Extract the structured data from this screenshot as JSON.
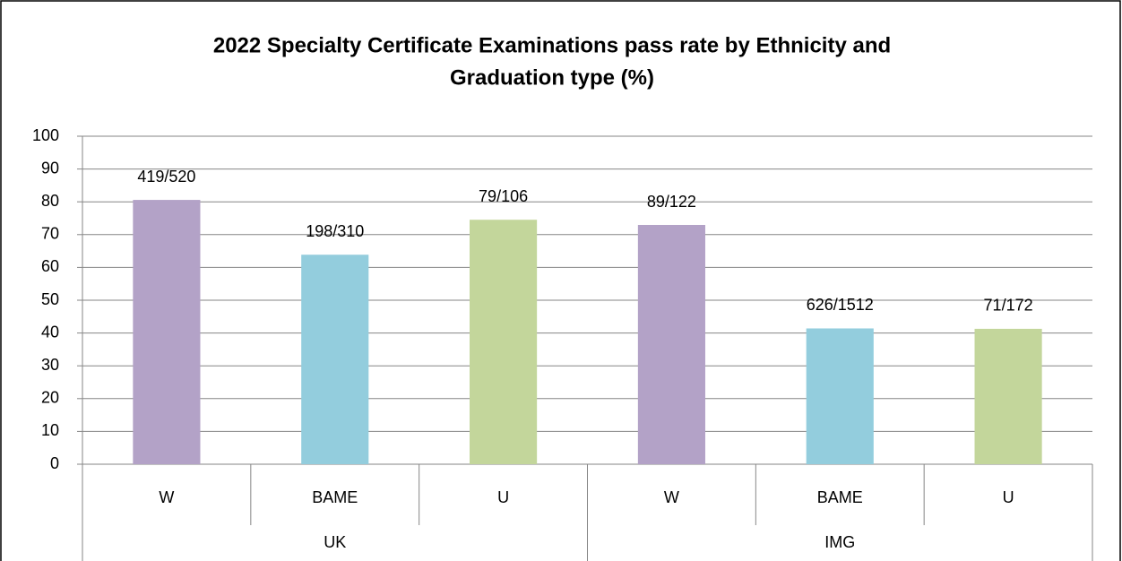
{
  "chart_data": {
    "type": "bar",
    "title": [
      "2022 Specialty Certificate Examinations pass rate by Ethnicity and",
      "Graduation type  (%)"
    ],
    "categories": [
      "W",
      "BAME",
      "U",
      "W",
      "BAME",
      "U"
    ],
    "groups": [
      {
        "label": "UK",
        "count": 3
      },
      {
        "label": "IMG",
        "count": 3
      }
    ],
    "values": [
      80.58,
      63.87,
      74.53,
      72.95,
      41.4,
      41.28
    ],
    "value_labels": [
      "419/520",
      "198/310",
      "79/106",
      "89/122",
      "626/1512",
      "71/172"
    ],
    "colors": [
      "#b3a2c7",
      "#93cddd",
      "#c3d69b",
      "#b3a2c7",
      "#93cddd",
      "#c3d69b"
    ],
    "ylim": [
      0,
      100
    ],
    "yticks": [
      0,
      10,
      20,
      30,
      40,
      50,
      60,
      70,
      80,
      90,
      100
    ],
    "grid": true
  }
}
